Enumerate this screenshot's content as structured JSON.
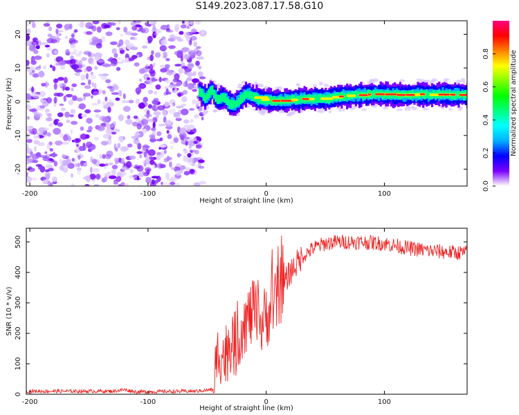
{
  "title": "S149.2023.087.17.58.G10",
  "chart_data": [
    {
      "type": "heatmap",
      "name": "spectrogram",
      "xlabel": "Height of straight line (km)",
      "ylabel": "Frequency (Hz)",
      "xlim": [
        -203,
        170
      ],
      "ylim": [
        -25,
        24
      ],
      "xticks": [
        -200,
        -100,
        0,
        100
      ],
      "yticks": [
        -20,
        -10,
        0,
        10,
        20
      ],
      "colorbar": {
        "label": "Normalized spectral amplitude",
        "range": [
          0,
          1
        ],
        "ticks": [
          "0.0",
          "0.2",
          "0.4",
          "0.6",
          "0.8"
        ],
        "tick_values": [
          0.0,
          0.2,
          0.4,
          0.6,
          0.8
        ],
        "colors": [
          "#ffffff",
          "#7a00ff",
          "#0000ff",
          "#00b0ff",
          "#00ffff",
          "#00ff80",
          "#00ff00",
          "#80ff00",
          "#ffff00",
          "#ff8000",
          "#ff0000",
          "#ff0080"
        ]
      },
      "noise_region_x": [
        -203,
        -57
      ],
      "signal_line": {
        "x": [
          -57,
          -52,
          -47,
          -42,
          -37,
          -32,
          -27,
          -22,
          -17,
          -12,
          -7,
          -2,
          3,
          8,
          13,
          20,
          30,
          40,
          50,
          60,
          70,
          80,
          90,
          100,
          110,
          120,
          130,
          140,
          150,
          160,
          170
        ],
        "freq": [
          3.0,
          1.0,
          3.5,
          0.5,
          1.5,
          -0.5,
          -0.8,
          1.0,
          2.5,
          1.5,
          0.8,
          0.5,
          0.3,
          0.2,
          0.3,
          0.5,
          0.8,
          0.8,
          1.0,
          1.5,
          1.8,
          2.0,
          2.2,
          2.2,
          2.0,
          2.0,
          2.2,
          2.0,
          2.2,
          2.0,
          2.0
        ]
      }
    },
    {
      "type": "line",
      "name": "snr",
      "xlabel": "Height of straight line (km)",
      "ylabel": "SNR (10 * v/v)",
      "xlim": [
        -203,
        170
      ],
      "ylim": [
        0,
        545
      ],
      "xticks": [
        -200,
        -100,
        0,
        100
      ],
      "yticks": [
        0,
        100,
        200,
        300,
        400,
        500
      ],
      "color": "#ee2222",
      "envelope": {
        "x": [
          -203,
          -130,
          -120,
          -110,
          -60,
          -45,
          -40,
          -35,
          -30,
          -25,
          -20,
          -15,
          -10,
          -5,
          0,
          5,
          10,
          20,
          30,
          40,
          50,
          60,
          80,
          100,
          120,
          140,
          160,
          170
        ],
        "snr": [
          10,
          10,
          15,
          8,
          10,
          15,
          150,
          120,
          180,
          160,
          230,
          250,
          270,
          220,
          260,
          280,
          320,
          400,
          450,
          480,
          495,
          500,
          500,
          495,
          480,
          470,
          465,
          465
        ]
      }
    }
  ]
}
